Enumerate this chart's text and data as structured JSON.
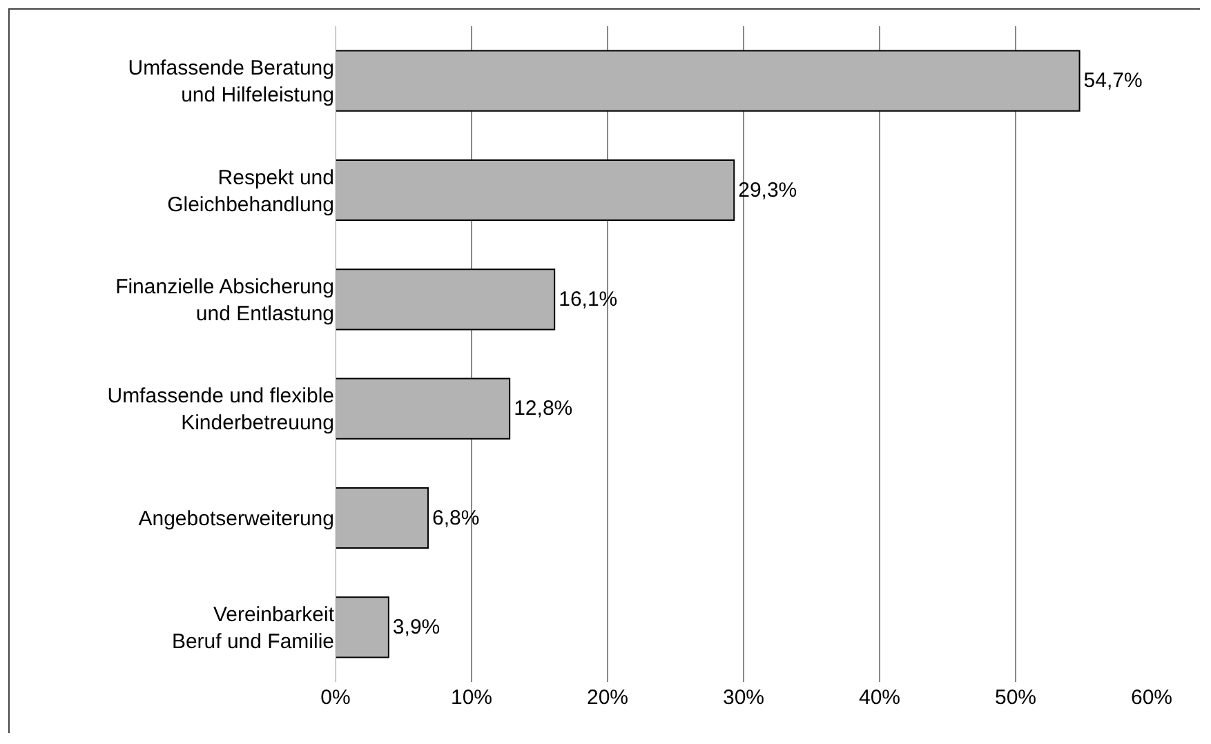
{
  "chart_data": {
    "type": "bar",
    "orientation": "horizontal",
    "categories": [
      "Umfassende Beratung\nund Hilfeleistung",
      "Respekt und\nGleichbehandlung",
      "Finanzielle Absicherung\nund Entlastung",
      "Umfassende und flexible\nKinderbetreuung",
      "Angebotserweiterung",
      "Vereinbarkeit\nBeruf und Familie"
    ],
    "values": [
      54.7,
      29.3,
      16.1,
      12.8,
      6.8,
      3.9
    ],
    "value_labels": [
      "54,7%",
      "29,3%",
      "16,1%",
      "12,8%",
      "6,8%",
      "3,9%"
    ],
    "color": "#b3b3b3",
    "xlim": [
      0,
      60
    ],
    "xticks": [
      {
        "value": 0,
        "label": "0%"
      },
      {
        "value": 10,
        "label": "10%"
      },
      {
        "value": 20,
        "label": "20%"
      },
      {
        "value": 30,
        "label": "30%"
      },
      {
        "value": 40,
        "label": "40%"
      },
      {
        "value": 50,
        "label": "50%"
      },
      {
        "value": 60,
        "label": "60%"
      }
    ],
    "grid": "x",
    "legend": false
  }
}
